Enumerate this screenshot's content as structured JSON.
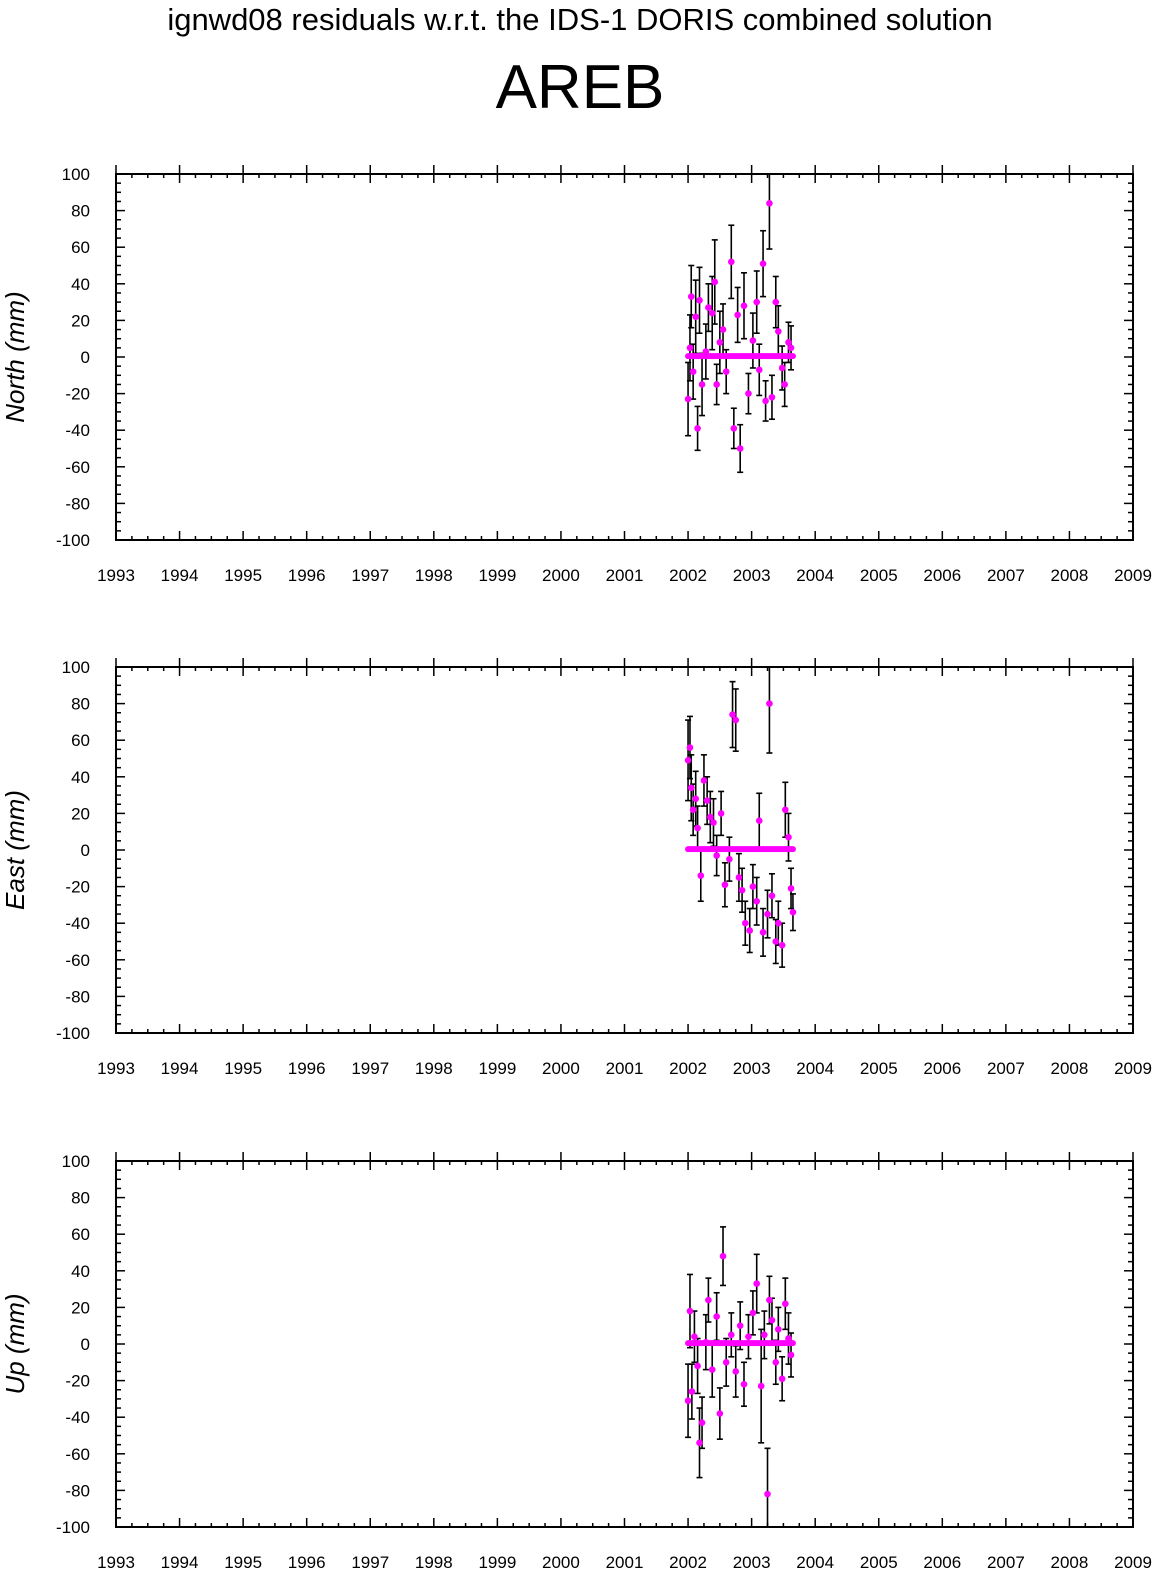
{
  "title": "ignwd08 residuals w.r.t. the IDS-1 DORIS combined solution",
  "station": "AREB",
  "colors": {
    "point": "#ff00ff",
    "errorbar": "#000000",
    "axis": "#000000",
    "background": "#ffffff"
  },
  "chart_data": [
    {
      "type": "scatter",
      "component": "North",
      "ylabel": "North (mm)",
      "xlim": [
        1993,
        2009
      ],
      "ylim": [
        -100,
        100
      ],
      "x_ticks": [
        1993,
        1994,
        1995,
        1996,
        1997,
        1998,
        1999,
        2000,
        2001,
        2002,
        2003,
        2004,
        2005,
        2006,
        2007,
        2008,
        2009
      ],
      "y_ticks": [
        -100,
        -80,
        -60,
        -40,
        -20,
        0,
        20,
        40,
        60,
        80,
        100
      ],
      "grid": false,
      "series": [
        {
          "type": "line",
          "x": [
            2002.0,
            2003.65
          ],
          "y": [
            0.5,
            0.5
          ]
        },
        {
          "type": "errorbar",
          "points": [
            [
              2002.0,
              -23,
              20
            ],
            [
              2002.03,
              5,
              18
            ],
            [
              2002.05,
              33,
              17
            ],
            [
              2002.08,
              -8,
              15
            ],
            [
              2002.12,
              22,
              20
            ],
            [
              2002.15,
              -39,
              12
            ],
            [
              2002.18,
              31,
              18
            ],
            [
              2002.22,
              -15,
              17
            ],
            [
              2002.28,
              3,
              15
            ],
            [
              2002.32,
              27,
              13
            ],
            [
              2002.38,
              24,
              20
            ],
            [
              2002.42,
              41,
              23
            ],
            [
              2002.45,
              -15,
              11
            ],
            [
              2002.5,
              8,
              17
            ],
            [
              2002.55,
              15,
              14
            ],
            [
              2002.6,
              -8,
              12
            ],
            [
              2002.68,
              52,
              20
            ],
            [
              2002.72,
              -39,
              11
            ],
            [
              2002.78,
              23,
              15
            ],
            [
              2002.82,
              -50,
              13
            ],
            [
              2002.88,
              28,
              18
            ],
            [
              2002.95,
              -20,
              11
            ],
            [
              2003.02,
              9,
              15
            ],
            [
              2003.08,
              30,
              17
            ],
            [
              2003.12,
              -7,
              14
            ],
            [
              2003.18,
              51,
              18
            ],
            [
              2003.22,
              -24,
              11
            ],
            [
              2003.28,
              84,
              25
            ],
            [
              2003.32,
              -22,
              12
            ],
            [
              2003.38,
              30,
              14
            ],
            [
              2003.42,
              14,
              14
            ],
            [
              2003.48,
              -6,
              12
            ],
            [
              2003.52,
              -15,
              12
            ],
            [
              2003.58,
              8,
              11
            ],
            [
              2003.62,
              5,
              12
            ]
          ]
        }
      ]
    },
    {
      "type": "scatter",
      "component": "East",
      "ylabel": "East (mm)",
      "xlim": [
        1993,
        2009
      ],
      "ylim": [
        -100,
        100
      ],
      "x_ticks": [
        1993,
        1994,
        1995,
        1996,
        1997,
        1998,
        1999,
        2000,
        2001,
        2002,
        2003,
        2004,
        2005,
        2006,
        2007,
        2008,
        2009
      ],
      "y_ticks": [
        -100,
        -80,
        -60,
        -40,
        -20,
        0,
        20,
        40,
        60,
        80,
        100
      ],
      "grid": false,
      "series": [
        {
          "type": "line",
          "x": [
            2002.0,
            2003.65
          ],
          "y": [
            0.5,
            0.5
          ]
        },
        {
          "type": "errorbar",
          "points": [
            [
              2002.0,
              49,
              22
            ],
            [
              2002.03,
              56,
              17
            ],
            [
              2002.05,
              34,
              18
            ],
            [
              2002.08,
              22,
              14
            ],
            [
              2002.12,
              28,
              15
            ],
            [
              2002.15,
              12,
              12
            ],
            [
              2002.2,
              -14,
              14
            ],
            [
              2002.25,
              38,
              14
            ],
            [
              2002.3,
              27,
              13
            ],
            [
              2002.35,
              18,
              14
            ],
            [
              2002.4,
              15,
              13
            ],
            [
              2002.45,
              -3,
              11
            ],
            [
              2002.52,
              20,
              12
            ],
            [
              2002.58,
              -19,
              12
            ],
            [
              2002.65,
              -5,
              12
            ],
            [
              2002.7,
              74,
              18
            ],
            [
              2002.75,
              71,
              17
            ],
            [
              2002.8,
              -15,
              13
            ],
            [
              2002.85,
              -22,
              12
            ],
            [
              2002.9,
              -40,
              12
            ],
            [
              2002.97,
              -44,
              12
            ],
            [
              2003.02,
              -20,
              12
            ],
            [
              2003.08,
              -28,
              13
            ],
            [
              2003.12,
              16,
              15
            ],
            [
              2003.18,
              -45,
              13
            ],
            [
              2003.25,
              -35,
              13
            ],
            [
              2003.28,
              80,
              27
            ],
            [
              2003.32,
              -25,
              12
            ],
            [
              2003.38,
              -50,
              12
            ],
            [
              2003.42,
              -40,
              12
            ],
            [
              2003.48,
              -52,
              12
            ],
            [
              2003.53,
              22,
              15
            ],
            [
              2003.58,
              7,
              13
            ],
            [
              2003.62,
              -21,
              11
            ],
            [
              2003.65,
              -34,
              10
            ]
          ]
        }
      ]
    },
    {
      "type": "scatter",
      "component": "Up",
      "ylabel": "Up (mm)",
      "xlim": [
        1993,
        2009
      ],
      "ylim": [
        -100,
        100
      ],
      "x_ticks": [
        1993,
        1994,
        1995,
        1996,
        1997,
        1998,
        1999,
        2000,
        2001,
        2002,
        2003,
        2004,
        2005,
        2006,
        2007,
        2008,
        2009
      ],
      "y_ticks": [
        -100,
        -80,
        -60,
        -40,
        -20,
        0,
        20,
        40,
        60,
        80,
        100
      ],
      "grid": false,
      "series": [
        {
          "type": "line",
          "x": [
            2002.0,
            2003.65
          ],
          "y": [
            0.5,
            0.5
          ]
        },
        {
          "type": "errorbar",
          "points": [
            [
              2002.0,
              -31,
              20
            ],
            [
              2002.03,
              18,
              20
            ],
            [
              2002.06,
              -26,
              15
            ],
            [
              2002.1,
              4,
              14
            ],
            [
              2002.15,
              -12,
              15
            ],
            [
              2002.18,
              -54,
              19
            ],
            [
              2002.22,
              -43,
              14
            ],
            [
              2002.28,
              1,
              15
            ],
            [
              2002.32,
              24,
              12
            ],
            [
              2002.38,
              -14,
              15
            ],
            [
              2002.45,
              15,
              13
            ],
            [
              2002.5,
              -38,
              14
            ],
            [
              2002.55,
              48,
              16
            ],
            [
              2002.6,
              -10,
              13
            ],
            [
              2002.68,
              5,
              12
            ],
            [
              2002.75,
              -15,
              14
            ],
            [
              2002.82,
              10,
              13
            ],
            [
              2002.88,
              -22,
              12
            ],
            [
              2002.95,
              4,
              12
            ],
            [
              2003.02,
              17,
              12
            ],
            [
              2003.08,
              33,
              16
            ],
            [
              2003.15,
              -23,
              31
            ],
            [
              2003.2,
              5,
              13
            ],
            [
              2003.25,
              -82,
              25
            ],
            [
              2003.28,
              24,
              13
            ],
            [
              2003.32,
              13,
              12
            ],
            [
              2003.38,
              -10,
              12
            ],
            [
              2003.42,
              8,
              12
            ],
            [
              2003.48,
              -19,
              12
            ],
            [
              2003.53,
              22,
              14
            ],
            [
              2003.58,
              3,
              14
            ],
            [
              2003.62,
              -6,
              12
            ]
          ]
        }
      ]
    }
  ]
}
